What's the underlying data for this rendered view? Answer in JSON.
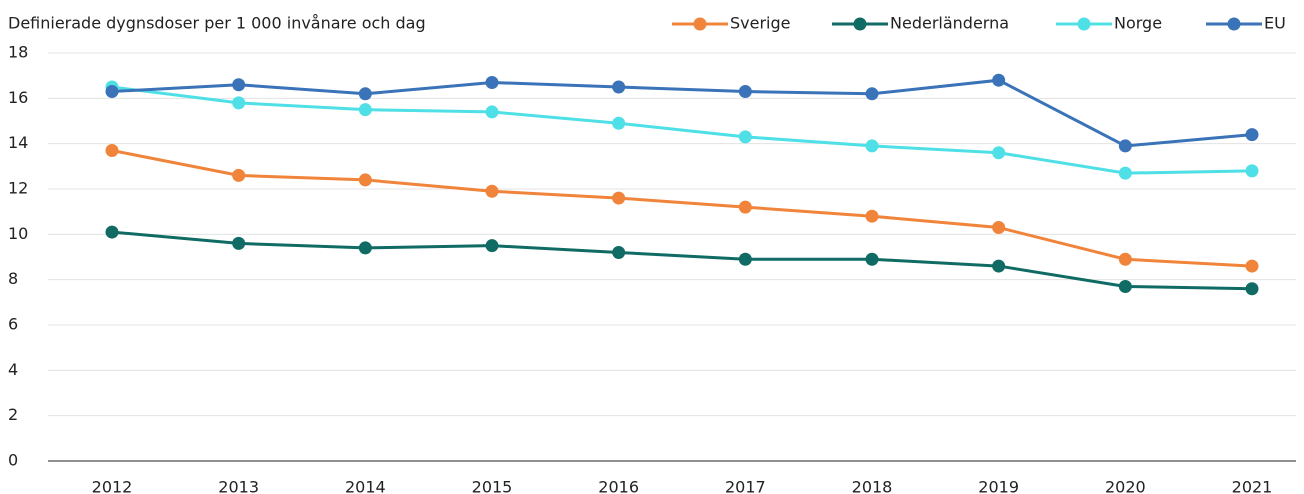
{
  "chart_data": {
    "type": "line",
    "title": "Definierade dygnsdoser per 1 000 invånare och dag",
    "categories": [
      "2012",
      "2013",
      "2014",
      "2015",
      "2016",
      "2017",
      "2018",
      "2019",
      "2020",
      "2021"
    ],
    "series": [
      {
        "name": "Sverige",
        "color": "#f0843a",
        "values": [
          13.7,
          12.6,
          12.4,
          11.9,
          11.6,
          11.2,
          10.8,
          10.3,
          8.9,
          8.6
        ]
      },
      {
        "name": "Nederländerna",
        "color": "#0f6b63",
        "values": [
          10.1,
          9.6,
          9.4,
          9.5,
          9.2,
          8.9,
          8.9,
          8.6,
          7.7,
          7.6
        ]
      },
      {
        "name": "Norge",
        "color": "#4ee0e6",
        "values": [
          16.5,
          15.8,
          15.5,
          15.4,
          14.9,
          14.3,
          13.9,
          13.6,
          12.7,
          12.8
        ]
      },
      {
        "name": "EU",
        "color": "#3a73b8",
        "values": [
          16.3,
          16.6,
          16.2,
          16.7,
          16.5,
          16.3,
          16.2,
          16.8,
          13.9,
          14.4
        ]
      }
    ],
    "ylim": [
      0,
      18
    ],
    "yticks": [
      0,
      2,
      4,
      6,
      8,
      10,
      12,
      14,
      16,
      18
    ],
    "grid": true
  }
}
